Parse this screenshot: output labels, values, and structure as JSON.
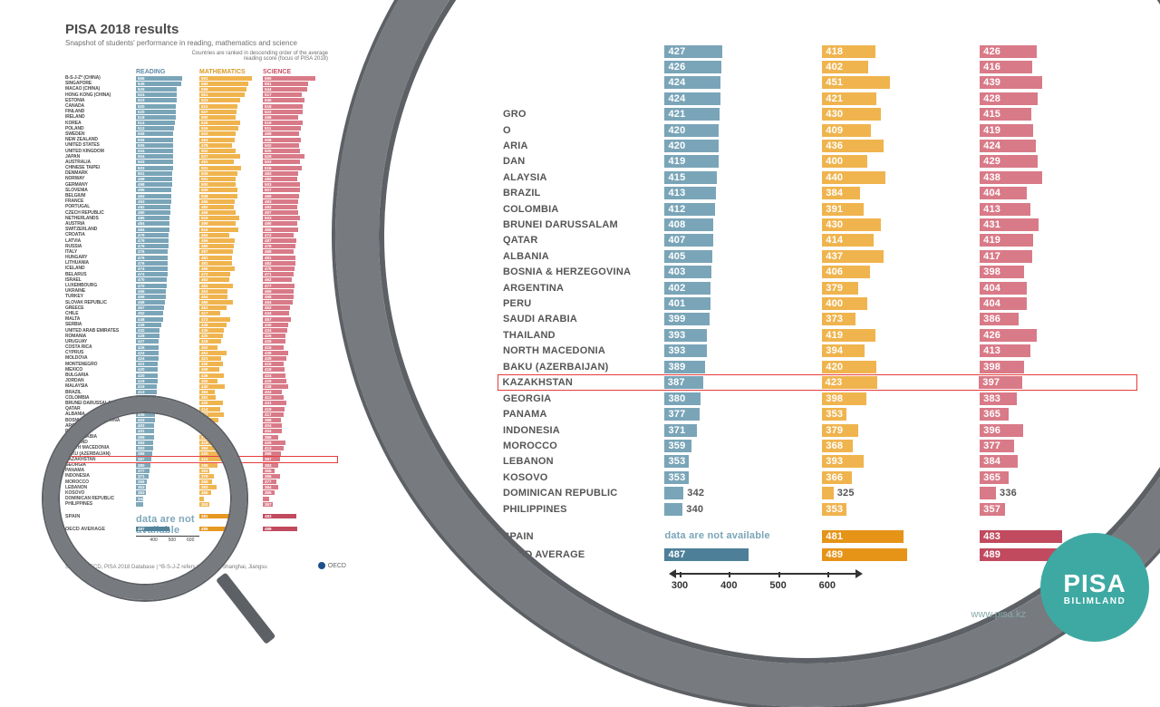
{
  "title": "PISA 2018 results",
  "subtitle": "Snapshot of students' performance in reading, mathematics and science",
  "ranking_note": "Countries are ranked in descending order of the average reading score (focus of PISA 2018)",
  "source_note": "Source: OECD, PISA 2018 Database | *B-S-J-Z refers to Beijing, Shanghai, Jiangsu",
  "oecd_label": "OECD",
  "url": "www.pisa.kz",
  "badge": {
    "line1": "PISA",
    "line2": "BILIMLAND"
  },
  "columns": [
    {
      "key": "reading",
      "label": "READING",
      "color_text": "#5f8aa6"
    },
    {
      "key": "mathematics",
      "label": "MATHEMATICS",
      "color_text": "#d99a23"
    },
    {
      "key": "science",
      "label": "SCIENCE",
      "color_text": "#c85064"
    }
  ],
  "colors": {
    "reading_bar": "#7aa5b8",
    "reading_avg": "#4d7f98",
    "math_bar": "#f0b44e",
    "math_avg": "#e59418",
    "science_bar": "#d97a88",
    "science_avg": "#c14a5f",
    "na_text": "#7aa5b8",
    "magnifier_frame": "#777a7e",
    "highlight_border": "#e63c3c",
    "badge_bg": "#3ea9a3"
  },
  "scale": {
    "min": 300,
    "max": 650,
    "ticks": [
      400,
      500,
      600
    ]
  },
  "zoom_scale": {
    "min": 300,
    "max": 650,
    "ticks": [
      300,
      400,
      500,
      600
    ]
  },
  "averages": {
    "label": "OECD AVERAGE",
    "reading": 487,
    "mathematics": 489,
    "science": 489
  },
  "spain": {
    "label": "SPAIN",
    "reading_na_text": "data are not available",
    "mathematics": 481,
    "science": 483
  },
  "highlight_country": "KAZAKHSTAN",
  "rows": [
    {
      "country": "B-S-J-Z* (CHINA)",
      "reading": 555,
      "mathematics": 591,
      "science": 590
    },
    {
      "country": "SINGAPORE",
      "reading": 549,
      "mathematics": 569,
      "science": 551
    },
    {
      "country": "MACAO (CHINA)",
      "reading": 525,
      "mathematics": 558,
      "science": 544
    },
    {
      "country": "HONG KONG (CHINA)",
      "reading": 524,
      "mathematics": 551,
      "science": 517
    },
    {
      "country": "ESTONIA",
      "reading": 523,
      "mathematics": 523,
      "science": 530
    },
    {
      "country": "CANADA",
      "reading": 520,
      "mathematics": 512,
      "science": 518
    },
    {
      "country": "FINLAND",
      "reading": 520,
      "mathematics": 507,
      "science": 522
    },
    {
      "country": "IRELAND",
      "reading": 518,
      "mathematics": 500,
      "science": 496
    },
    {
      "country": "KOREA",
      "reading": 514,
      "mathematics": 526,
      "science": 519
    },
    {
      "country": "POLAND",
      "reading": 512,
      "mathematics": 516,
      "science": 511
    },
    {
      "country": "SWEDEN",
      "reading": 506,
      "mathematics": 502,
      "science": 499
    },
    {
      "country": "NEW ZEALAND",
      "reading": 506,
      "mathematics": 494,
      "science": 508
    },
    {
      "country": "UNITED STATES",
      "reading": 505,
      "mathematics": 478,
      "science": 502
    },
    {
      "country": "UNITED KINGDOM",
      "reading": 504,
      "mathematics": 502,
      "science": 505
    },
    {
      "country": "JAPAN",
      "reading": 504,
      "mathematics": 527,
      "science": 529
    },
    {
      "country": "AUSTRALIA",
      "reading": 503,
      "mathematics": 491,
      "science": 503
    },
    {
      "country": "CHINESE TAIPEI",
      "reading": 503,
      "mathematics": 531,
      "science": 516
    },
    {
      "country": "DENMARK",
      "reading": 501,
      "mathematics": 509,
      "science": 493
    },
    {
      "country": "NORWAY",
      "reading": 499,
      "mathematics": 501,
      "science": 490
    },
    {
      "country": "GERMANY",
      "reading": 498,
      "mathematics": 500,
      "science": 503
    },
    {
      "country": "SLOVENIA",
      "reading": 495,
      "mathematics": 509,
      "science": 507
    },
    {
      "country": "BELGIUM",
      "reading": 493,
      "mathematics": 508,
      "science": 499
    },
    {
      "country": "FRANCE",
      "reading": 493,
      "mathematics": 495,
      "science": 493
    },
    {
      "country": "PORTUGAL",
      "reading": 492,
      "mathematics": 492,
      "science": 492
    },
    {
      "country": "CZECH REPUBLIC",
      "reading": 490,
      "mathematics": 499,
      "science": 497
    },
    {
      "country": "NETHERLANDS",
      "reading": 485,
      "mathematics": 519,
      "science": 503
    },
    {
      "country": "AUSTRIA",
      "reading": 484,
      "mathematics": 499,
      "science": 490
    },
    {
      "country": "SWITZERLAND",
      "reading": 484,
      "mathematics": 515,
      "science": 495
    },
    {
      "country": "CROATIA",
      "reading": 479,
      "mathematics": 464,
      "science": 472
    },
    {
      "country": "LATVIA",
      "reading": 479,
      "mathematics": 496,
      "science": 487
    },
    {
      "country": "RUSSIA",
      "reading": 479,
      "mathematics": 488,
      "science": 478
    },
    {
      "country": "ITALY",
      "reading": 476,
      "mathematics": 487,
      "science": 468
    },
    {
      "country": "HUNGARY",
      "reading": 476,
      "mathematics": 481,
      "science": 481
    },
    {
      "country": "LITHUANIA",
      "reading": 476,
      "mathematics": 481,
      "science": 482
    },
    {
      "country": "ICELAND",
      "reading": 474,
      "mathematics": 495,
      "science": 475
    },
    {
      "country": "BELARUS",
      "reading": 474,
      "mathematics": 472,
      "science": 471
    },
    {
      "country": "ISRAEL",
      "reading": 470,
      "mathematics": 463,
      "science": 462
    },
    {
      "country": "LUXEMBOURG",
      "reading": 470,
      "mathematics": 483,
      "science": 477
    },
    {
      "country": "UKRAINE",
      "reading": 466,
      "mathematics": 453,
      "science": 469
    },
    {
      "country": "TURKEY",
      "reading": 466,
      "mathematics": 454,
      "science": 468
    },
    {
      "country": "SLOVAK REPUBLIC",
      "reading": 458,
      "mathematics": 486,
      "science": 464
    },
    {
      "country": "GREECE",
      "reading": 457,
      "mathematics": 451,
      "science": 452
    },
    {
      "country": "CHILE",
      "reading": 452,
      "mathematics": 417,
      "science": 444
    },
    {
      "country": "MALTA",
      "reading": 448,
      "mathematics": 472,
      "science": 457
    },
    {
      "country": "SERBIA",
      "reading": 439,
      "mathematics": 448,
      "science": 440
    },
    {
      "country": "UNITED ARAB EMIRATES",
      "reading": 432,
      "mathematics": 435,
      "science": 434
    },
    {
      "country": "ROMANIA",
      "reading": 428,
      "mathematics": 430,
      "science": 426
    },
    {
      "country": "URUGUAY",
      "reading": 427,
      "mathematics": 418,
      "science": 426
    },
    {
      "country": "COSTA RICA",
      "reading": 426,
      "mathematics": 402,
      "science": 416
    },
    {
      "country": "CYPRUS",
      "reading": 424,
      "mathematics": 451,
      "science": 439
    },
    {
      "country": "MOLDOVA",
      "reading": 424,
      "mathematics": 421,
      "science": 428
    },
    {
      "country": "MONTENEGRO",
      "reading": 421,
      "mathematics": 430,
      "science": 415
    },
    {
      "country": "MEXICO",
      "reading": 420,
      "mathematics": 409,
      "science": 419
    },
    {
      "country": "BULGARIA",
      "reading": 420,
      "mathematics": 436,
      "science": 424
    },
    {
      "country": "JORDAN",
      "reading": 419,
      "mathematics": 400,
      "science": 429
    },
    {
      "country": "MALAYSIA",
      "reading": 415,
      "mathematics": 440,
      "science": 438
    },
    {
      "country": "BRAZIL",
      "reading": 413,
      "mathematics": 384,
      "science": 404
    },
    {
      "country": "COLOMBIA",
      "reading": 412,
      "mathematics": 391,
      "science": 413
    },
    {
      "country": "BRUNEI DARUSSALAM",
      "reading": 408,
      "mathematics": 430,
      "science": 431
    },
    {
      "country": "QATAR",
      "reading": 407,
      "mathematics": 414,
      "science": 419
    },
    {
      "country": "ALBANIA",
      "reading": 405,
      "mathematics": 437,
      "science": 417
    },
    {
      "country": "BOSNIA & HERZEGOVINA",
      "reading": 403,
      "mathematics": 406,
      "science": 398
    },
    {
      "country": "ARGENTINA",
      "reading": 402,
      "mathematics": 379,
      "science": 404
    },
    {
      "country": "PERU",
      "reading": 401,
      "mathematics": 400,
      "science": 404
    },
    {
      "country": "SAUDI ARABIA",
      "reading": 399,
      "mathematics": 373,
      "science": 386
    },
    {
      "country": "THAILAND",
      "reading": 393,
      "mathematics": 419,
      "science": 426
    },
    {
      "country": "NORTH MACEDONIA",
      "reading": 393,
      "mathematics": 394,
      "science": 413
    },
    {
      "country": "BAKU (AZERBAIJAN)",
      "reading": 389,
      "mathematics": 420,
      "science": 398
    },
    {
      "country": "KAZAKHSTAN",
      "reading": 387,
      "mathematics": 423,
      "science": 397
    },
    {
      "country": "GEORGIA",
      "reading": 380,
      "mathematics": 398,
      "science": 383
    },
    {
      "country": "PANAMA",
      "reading": 377,
      "mathematics": 353,
      "science": 365
    },
    {
      "country": "INDONESIA",
      "reading": 371,
      "mathematics": 379,
      "science": 396
    },
    {
      "country": "MOROCCO",
      "reading": 359,
      "mathematics": 368,
      "science": 377
    },
    {
      "country": "LEBANON",
      "reading": 353,
      "mathematics": 393,
      "science": 384
    },
    {
      "country": "KOSOVO",
      "reading": 353,
      "mathematics": 366,
      "science": 365
    },
    {
      "country": "DOMINICAN REPUBLIC",
      "reading": 342,
      "mathematics": 325,
      "science": 336
    },
    {
      "country": "PHILIPPINES",
      "reading": 340,
      "mathematics": 353,
      "science": 357
    }
  ],
  "zoom_start_index": 47,
  "typography": {
    "title_fontsize": 15,
    "zoom_fontsize": 11,
    "master_fontsize": 5
  }
}
